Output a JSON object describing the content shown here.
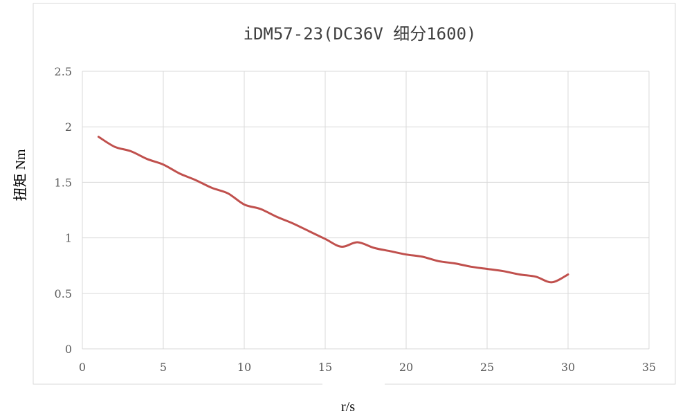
{
  "chart_data": {
    "type": "line",
    "title": "iDM57-23(DC36V 细分1600)",
    "xlabel": "r/s",
    "ylabel": "扭矩 Nm",
    "xlim": [
      0,
      35
    ],
    "ylim": [
      0,
      2.5
    ],
    "xticks": [
      "0",
      "5",
      "10",
      "15",
      "20",
      "25",
      "30",
      "35"
    ],
    "yticks": [
      "0",
      "0.5",
      "1",
      "1.5",
      "2",
      "2.5"
    ],
    "grid": true,
    "color": "#c0504d",
    "series": [
      {
        "x": [
          1,
          2,
          3,
          4,
          5,
          6,
          7,
          8,
          9,
          10,
          11,
          12,
          13,
          14,
          15,
          16,
          17,
          18,
          19,
          20,
          21,
          22,
          23,
          24,
          25,
          26,
          27,
          28,
          29,
          30
        ],
        "values": [
          1.91,
          1.82,
          1.78,
          1.71,
          1.66,
          1.58,
          1.52,
          1.45,
          1.4,
          1.3,
          1.26,
          1.19,
          1.13,
          1.06,
          0.99,
          0.92,
          0.96,
          0.91,
          0.88,
          0.85,
          0.83,
          0.79,
          0.77,
          0.74,
          0.72,
          0.7,
          0.67,
          0.65,
          0.6,
          0.67
        ]
      }
    ]
  }
}
